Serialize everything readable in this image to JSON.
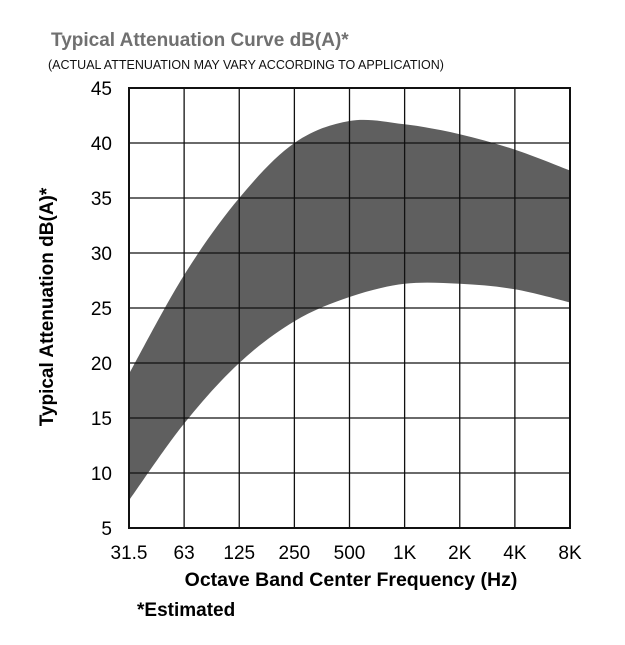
{
  "chart_data": {
    "type": "area",
    "title": "Typical Attenuation Curve dB(A)*",
    "subtitle": "(ACTUAL ATTENUATION MAY VARY ACCORDING TO APPLICATION)",
    "xlabel": "Octave Band Center Frequency (Hz)",
    "ylabel": "Typical Attenuation dB(A)*",
    "footnote": "*Estimated",
    "categories": [
      "31.5",
      "63",
      "125",
      "250",
      "500",
      "1K",
      "2K",
      "4K",
      "8K"
    ],
    "y_ticks": [
      "45",
      "40",
      "35",
      "30",
      "25",
      "20",
      "15",
      "10",
      "5"
    ],
    "ylim": [
      5,
      45
    ],
    "grid": true,
    "series": [
      {
        "upper": [
          19,
          28,
          35,
          40,
          42,
          41.7,
          40.8,
          39.4,
          37.5
        ],
        "lower": [
          7.5,
          14.5,
          20,
          23.8,
          26,
          27.2,
          27.2,
          26.7,
          25.5
        ]
      }
    ],
    "colors": {
      "band_fill": "#5f5f5f",
      "grid": "#111111",
      "title": "#707070"
    }
  }
}
